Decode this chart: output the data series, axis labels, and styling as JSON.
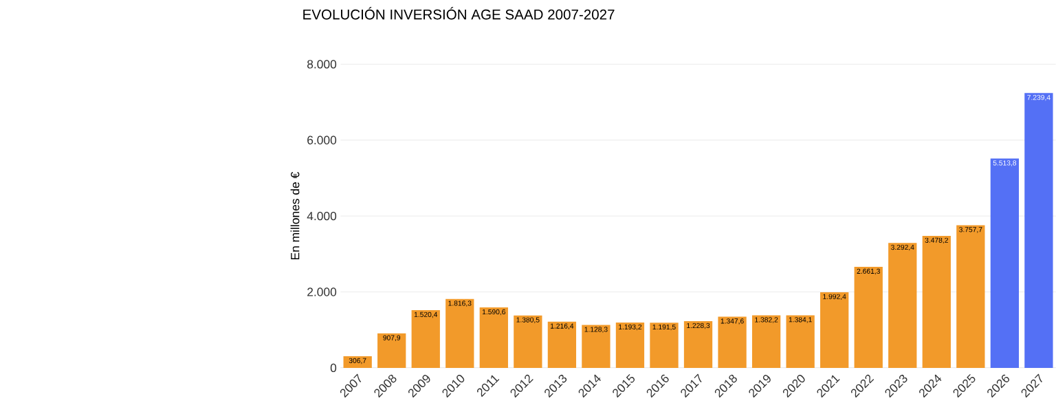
{
  "chart_data": {
    "type": "bar",
    "title": "EVOLUCIÓN INVERSIÓN AGE SAAD 2007-2027",
    "ylabel": "En millones de €",
    "categories": [
      "2007",
      "2008",
      "2009",
      "2010",
      "2011",
      "2012",
      "2013",
      "2014",
      "2015",
      "2016",
      "2017",
      "2018",
      "2019",
      "2020",
      "2021",
      "2022",
      "2023",
      "2024",
      "2025",
      "2026",
      "2027"
    ],
    "values": [
      306.7,
      907.9,
      1520.4,
      1816.3,
      1590.6,
      1380.5,
      1216.4,
      1128.3,
      1193.2,
      1191.5,
      1228.3,
      1347.6,
      1382.2,
      1384.1,
      1992.4,
      2661.3,
      3292.4,
      3478.2,
      3757.7,
      5513.8,
      7239.4
    ],
    "value_labels": [
      "306,7",
      "907,9",
      "1.520,4",
      "1.816,3",
      "1.590,6",
      "1.380,5",
      "1.216,4",
      "1.128,3",
      "1.193,2",
      "1.191,5",
      "1.228,3",
      "1.347,6",
      "1.382,2",
      "1.384,1",
      "1.992,4",
      "2.661,3",
      "3.292,4",
      "3.478,2",
      "3.757,7",
      "5.513,8",
      "7.239,4"
    ],
    "colors": [
      "#f29a2a",
      "#f29a2a",
      "#f29a2a",
      "#f29a2a",
      "#f29a2a",
      "#f29a2a",
      "#f29a2a",
      "#f29a2a",
      "#f29a2a",
      "#f29a2a",
      "#f29a2a",
      "#f29a2a",
      "#f29a2a",
      "#f29a2a",
      "#f29a2a",
      "#f29a2a",
      "#f29a2a",
      "#f29a2a",
      "#f29a2a",
      "#5470f5",
      "#5470f5"
    ],
    "ylim": [
      0,
      8000
    ],
    "yticks": [
      {
        "value": 0,
        "label": "0"
      },
      {
        "value": 2000,
        "label": "2.000"
      },
      {
        "value": 4000,
        "label": "4.000"
      },
      {
        "value": 6000,
        "label": "6.000"
      },
      {
        "value": 8000,
        "label": "8.000"
      }
    ],
    "grid": "y"
  }
}
